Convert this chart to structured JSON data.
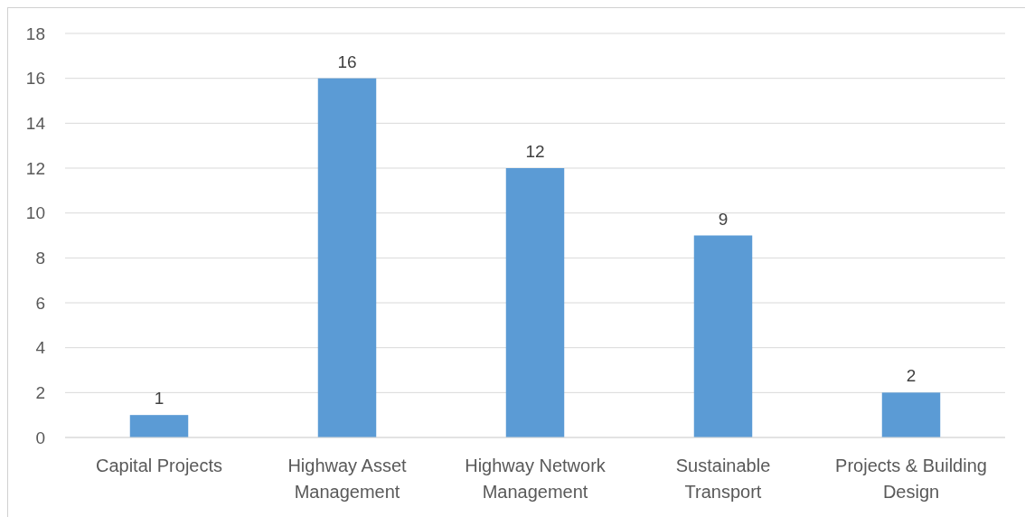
{
  "chart_data": {
    "type": "bar",
    "categories": [
      "Capital Projects",
      "Highway Asset Management",
      "Highway Network Management",
      "Sustainable Transport",
      "Projects & Building Design"
    ],
    "values": [
      1,
      16,
      12,
      9,
      2
    ],
    "color": "#5b9bd5",
    "ylim": [
      0,
      18
    ],
    "yticks": [
      0,
      2,
      4,
      6,
      8,
      10,
      12,
      14,
      16,
      18
    ],
    "grid": "y",
    "data_labels": true
  }
}
